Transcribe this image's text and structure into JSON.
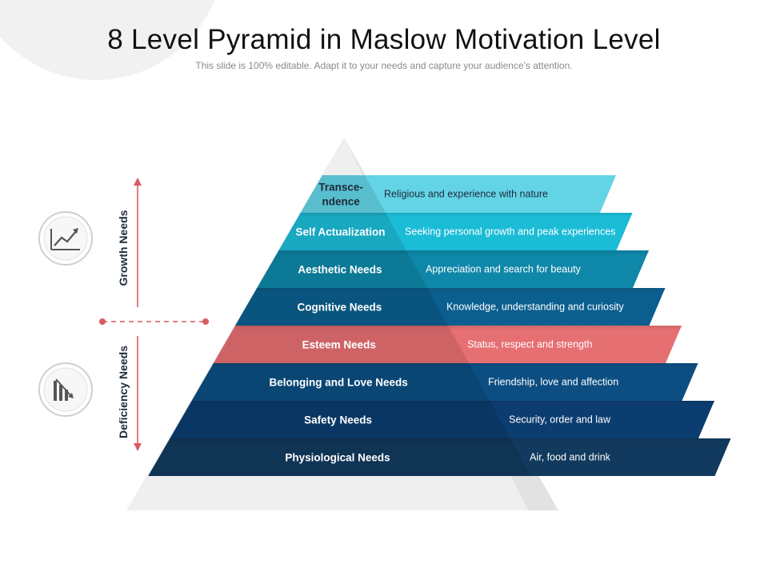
{
  "slide": {
    "title": "8 Level Pyramid in Maslow Motivation Level",
    "subtitle": "This slide is 100% editable. Adapt it to your needs and capture your audience's attention."
  },
  "groups": {
    "growth": "Growth Needs",
    "deficiency": "Deficiency Needs"
  },
  "icons": {
    "growth": "line-chart-up-icon",
    "deficiency": "bar-chart-down-icon"
  },
  "levels": [
    {
      "name_lines": [
        "Transce-",
        "ndence"
      ],
      "desc": "Religious and experience with nature",
      "color": "#63d4e6",
      "dark_text": true
    },
    {
      "name_lines": [
        "Self Actualization"
      ],
      "desc": "Seeking personal growth and peak experiences",
      "color": "#1bbcd6",
      "dark_text": false
    },
    {
      "name_lines": [
        "Aesthetic Needs"
      ],
      "desc": "Appreciation and search for beauty",
      "color": "#0e87a8",
      "dark_text": false
    },
    {
      "name_lines": [
        "Cognitive Needs"
      ],
      "desc": "Knowledge, understanding and curiosity",
      "color": "#0b5f8e",
      "dark_text": false
    },
    {
      "name_lines": [
        "Esteem Needs"
      ],
      "desc": "Status, respect and strength",
      "color": "#e66f72",
      "dark_text": false
    },
    {
      "name_lines": [
        "Belonging and Love Needs"
      ],
      "desc": "Friendship, love and affection",
      "color": "#0c4e82",
      "dark_text": false
    },
    {
      "name_lines": [
        "Safety Needs"
      ],
      "desc": "Security, order and law",
      "color": "#0c3d70",
      "dark_text": false
    },
    {
      "name_lines": [
        "Physiological  Needs"
      ],
      "desc": "Air, food and drink",
      "color": "#123a5e",
      "dark_text": false
    }
  ],
  "colors": {
    "arrow": "#d85c63",
    "base": "#efefef",
    "text_dark": "#1e2a38"
  }
}
